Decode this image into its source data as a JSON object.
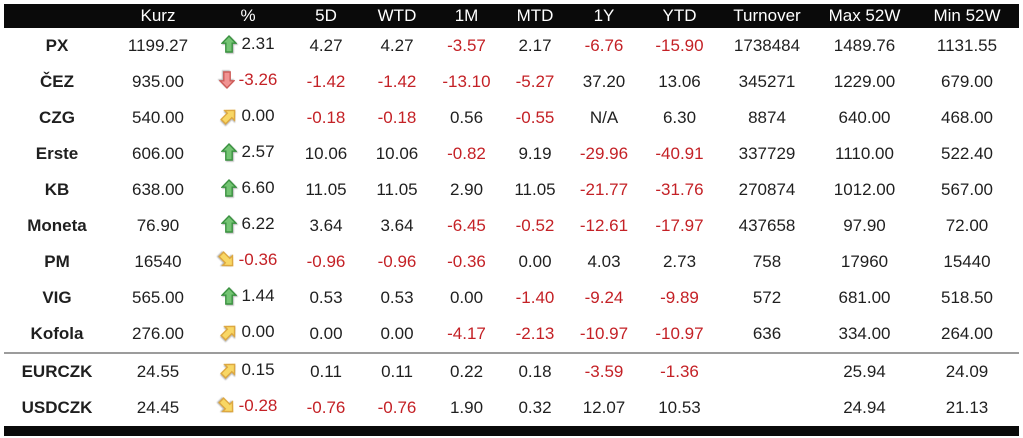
{
  "colors": {
    "page_bg": "#ffffff",
    "header_bg": "#0a0a0a",
    "header_text": "#ffffff",
    "text": "#1f1f1f",
    "negative_text": "#c42126",
    "divider": "#9c9c9c",
    "bottom_bar": "#0a0a0a",
    "arrow_up_fill": "#74c473",
    "arrow_up_stroke": "#3a9140",
    "arrow_down_fill": "#f19392",
    "arrow_down_stroke": "#cd5c59",
    "arrow_diag_fill": "#f8d765",
    "arrow_diag_stroke": "#dca63e"
  },
  "chart_data": {
    "type": "table",
    "columns": [
      "",
      "Kurz",
      "%",
      "5D",
      "WTD",
      "1M",
      "MTD",
      "1Y",
      "YTD",
      "Turnover",
      "Max 52W",
      "Min 52W"
    ],
    "rows": [
      {
        "name": "PX",
        "group": "equities",
        "kurz": "1199.27",
        "arrow": "up",
        "pct": "2.31",
        "d5": "4.27",
        "wtd": "4.27",
        "m1": "-3.57",
        "mtd": "2.17",
        "y1": "-6.76",
        "ytd": "-15.90",
        "turnover": "1738484",
        "max52w": "1489.76",
        "min52w": "1131.55"
      },
      {
        "name": "ČEZ",
        "group": "equities",
        "kurz": "935.00",
        "arrow": "down",
        "pct": "-3.26",
        "d5": "-1.42",
        "wtd": "-1.42",
        "m1": "-13.10",
        "mtd": "-5.27",
        "y1": "37.20",
        "ytd": "13.06",
        "turnover": "345271",
        "max52w": "1229.00",
        "min52w": "679.00"
      },
      {
        "name": "CZG",
        "group": "equities",
        "kurz": "540.00",
        "arrow": "diag-up",
        "pct": "0.00",
        "d5": "-0.18",
        "wtd": "-0.18",
        "m1": "0.56",
        "mtd": "-0.55",
        "y1": "N/A",
        "ytd": "6.30",
        "turnover": "8874",
        "max52w": "640.00",
        "min52w": "468.00"
      },
      {
        "name": "Erste",
        "group": "equities",
        "kurz": "606.00",
        "arrow": "up",
        "pct": "2.57",
        "d5": "10.06",
        "wtd": "10.06",
        "m1": "-0.82",
        "mtd": "9.19",
        "y1": "-29.96",
        "ytd": "-40.91",
        "turnover": "337729",
        "max52w": "1110.00",
        "min52w": "522.40"
      },
      {
        "name": "KB",
        "group": "equities",
        "kurz": "638.00",
        "arrow": "up",
        "pct": "6.60",
        "d5": "11.05",
        "wtd": "11.05",
        "m1": "2.90",
        "mtd": "11.05",
        "y1": "-21.77",
        "ytd": "-31.76",
        "turnover": "270874",
        "max52w": "1012.00",
        "min52w": "567.00"
      },
      {
        "name": "Moneta",
        "group": "equities",
        "kurz": "76.90",
        "arrow": "up",
        "pct": "6.22",
        "d5": "3.64",
        "wtd": "3.64",
        "m1": "-6.45",
        "mtd": "-0.52",
        "y1": "-12.61",
        "ytd": "-17.97",
        "turnover": "437658",
        "max52w": "97.90",
        "min52w": "72.00"
      },
      {
        "name": "PM",
        "group": "equities",
        "kurz": "16540",
        "arrow": "diag-down",
        "pct": "-0.36",
        "d5": "-0.96",
        "wtd": "-0.96",
        "m1": "-0.36",
        "mtd": "0.00",
        "y1": "4.03",
        "ytd": "2.73",
        "turnover": "758",
        "max52w": "17960",
        "min52w": "15440"
      },
      {
        "name": "VIG",
        "group": "equities",
        "kurz": "565.00",
        "arrow": "up",
        "pct": "1.44",
        "d5": "0.53",
        "wtd": "0.53",
        "m1": "0.00",
        "mtd": "-1.40",
        "y1": "-9.24",
        "ytd": "-9.89",
        "turnover": "572",
        "max52w": "681.00",
        "min52w": "518.50"
      },
      {
        "name": "Kofola",
        "group": "equities",
        "kurz": "276.00",
        "arrow": "diag-up",
        "pct": "0.00",
        "d5": "0.00",
        "wtd": "0.00",
        "m1": "-4.17",
        "mtd": "-2.13",
        "y1": "-10.97",
        "ytd": "-10.97",
        "turnover": "636",
        "max52w": "334.00",
        "min52w": "264.00"
      },
      {
        "name": "EURCZK",
        "group": "fx",
        "kurz": "24.55",
        "arrow": "diag-up",
        "pct": "0.15",
        "d5": "0.11",
        "wtd": "0.11",
        "m1": "0.22",
        "mtd": "0.18",
        "y1": "-3.59",
        "ytd": "-1.36",
        "turnover": "",
        "max52w": "25.94",
        "min52w": "24.09"
      },
      {
        "name": "USDCZK",
        "group": "fx",
        "kurz": "24.45",
        "arrow": "diag-down",
        "pct": "-0.28",
        "d5": "-0.76",
        "wtd": "-0.76",
        "m1": "1.90",
        "mtd": "0.32",
        "y1": "12.07",
        "ytd": "10.53",
        "turnover": "",
        "max52w": "24.94",
        "min52w": "21.13"
      }
    ]
  }
}
